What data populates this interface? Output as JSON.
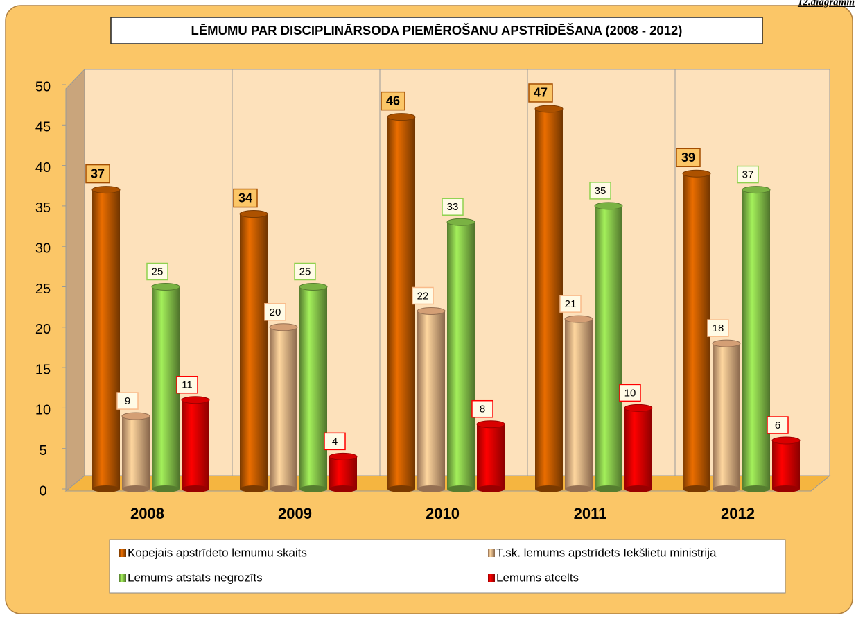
{
  "chart_data": {
    "type": "bar",
    "label": "12.diagramm",
    "title": "LĒMUMU PAR DISCIPLINĀRSODA PIEMĒROŠANU APSTRĪDĒŠANA (2008 - 2012)",
    "categories": [
      "2008",
      "2009",
      "2010",
      "2011",
      "2012"
    ],
    "series": [
      {
        "name": "Kopējais apstrīdēto lēmumu skaits",
        "color": "#cc6000",
        "values": [
          37,
          34,
          46,
          47,
          39
        ]
      },
      {
        "name": "T.sk. lēmums apstrīdēts Iekšlietu ministrijā",
        "color": "#f9bb8a",
        "values": [
          9,
          20,
          22,
          21,
          18
        ]
      },
      {
        "name": "Lēmums atstāts negrozīts",
        "color": "#8fd14f",
        "values": [
          25,
          25,
          33,
          35,
          37
        ]
      },
      {
        "name": "Lēmums atcelts",
        "color": "#ff0000",
        "values": [
          11,
          4,
          8,
          10,
          6
        ]
      }
    ],
    "ylim": [
      0,
      50
    ],
    "yticks": [
      0,
      5,
      10,
      15,
      20,
      25,
      30,
      35,
      40,
      45,
      50
    ],
    "grid": false,
    "legend": "bottom"
  }
}
